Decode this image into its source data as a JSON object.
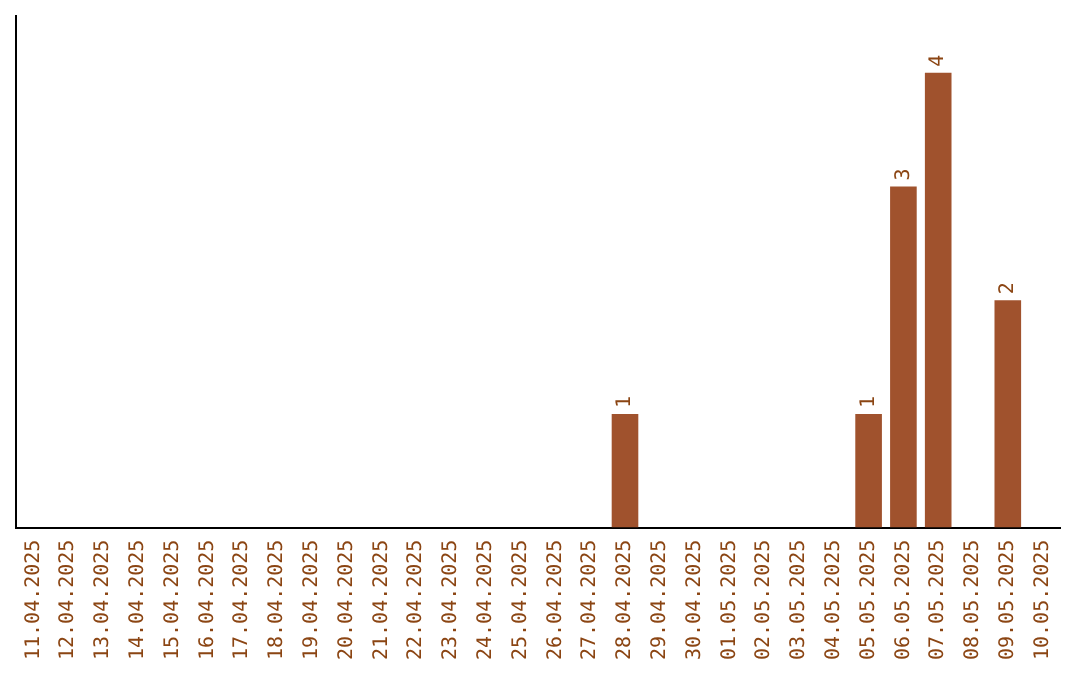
{
  "chart_data": {
    "type": "bar",
    "categories": [
      "11.04.2025",
      "12.04.2025",
      "13.04.2025",
      "14.04.2025",
      "15.04.2025",
      "16.04.2025",
      "17.04.2025",
      "18.04.2025",
      "19.04.2025",
      "20.04.2025",
      "21.04.2025",
      "22.04.2025",
      "23.04.2025",
      "24.04.2025",
      "25.04.2025",
      "26.04.2025",
      "27.04.2025",
      "28.04.2025",
      "29.04.2025",
      "30.04.2025",
      "01.05.2025",
      "02.05.2025",
      "03.05.2025",
      "04.05.2025",
      "05.05.2025",
      "06.05.2025",
      "07.05.2025",
      "08.05.2025",
      "09.05.2025",
      "10.05.2025"
    ],
    "values": [
      null,
      null,
      null,
      null,
      null,
      null,
      null,
      null,
      null,
      null,
      null,
      null,
      null,
      null,
      null,
      null,
      null,
      1,
      null,
      null,
      null,
      null,
      null,
      null,
      1,
      3,
      4,
      null,
      2,
      null
    ],
    "color": "#a0522d",
    "data_labels": true,
    "grid": false,
    "legend": false,
    "tick_labels": "x"
  }
}
